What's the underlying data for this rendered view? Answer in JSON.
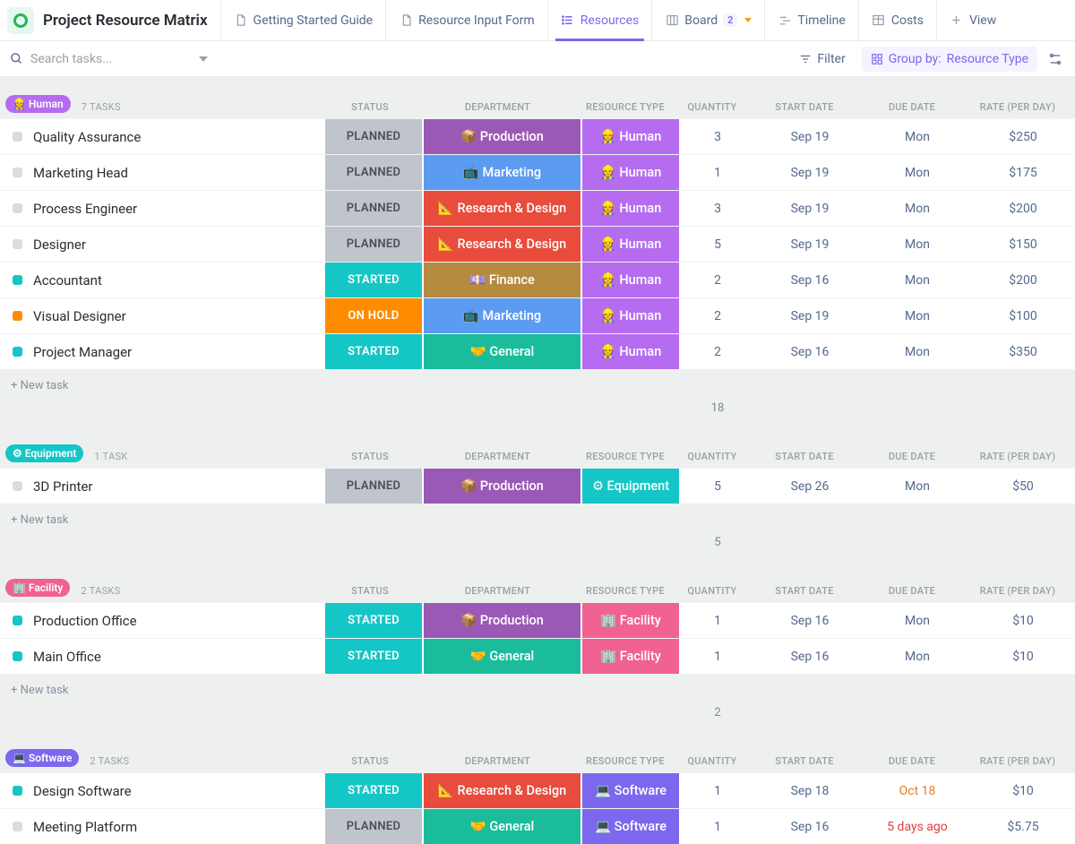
{
  "page_title": "Project Resource Matrix",
  "tabs": [
    {
      "label": "Getting Started Guide",
      "icon": "doc",
      "active": false
    },
    {
      "label": "Resource Input Form",
      "icon": "doc",
      "active": false
    },
    {
      "label": "Resources",
      "icon": "list",
      "active": true
    },
    {
      "label": "Board",
      "icon": "board",
      "active": false,
      "count": "2",
      "caret": true
    },
    {
      "label": "Timeline",
      "icon": "timeline",
      "active": false
    },
    {
      "label": "Costs",
      "icon": "table",
      "active": false
    },
    {
      "label": "View",
      "icon": "plus",
      "active": false
    }
  ],
  "search_placeholder": "Search tasks...",
  "filter_label": "Filter",
  "group_by_label": "Group by:",
  "group_by_value": "Resource Type",
  "new_task_label": "+ New task",
  "col_labels": {
    "status": "STATUS",
    "department": "DEPARTMENT",
    "resource_type": "RESOURCE TYPE",
    "quantity": "QUANTITY",
    "start": "START DATE",
    "due": "DUE DATE",
    "rate": "RATE (PER DAY)"
  },
  "status_colors": {
    "PLANNED": "#c0c4cc",
    "STARTED": "#15c6c6",
    "ON HOLD": "#ff8c00"
  },
  "marker_colors": {
    "grey": "#d9dce1",
    "teal": "#15c6c6",
    "orange": "#ff8c00"
  },
  "dept": {
    "Production": {
      "emoji": "📦",
      "color": "#9b59b6"
    },
    "Marketing": {
      "emoji": "📺",
      "color": "#5b9bf1"
    },
    "Research & Design": {
      "emoji": "📐",
      "color": "#e74c3c"
    },
    "Finance": {
      "emoji": "💷",
      "color": "#b58b3f"
    },
    "General": {
      "emoji": "🤝",
      "color": "#1abc9c"
    }
  },
  "type": {
    "Human": {
      "emoji": "👷",
      "color": "#b66cf0"
    },
    "Equipment": {
      "emoji": "⚙",
      "color": "#15c6c6"
    },
    "Facility": {
      "emoji": "🏢",
      "color": "#f06292"
    },
    "Software": {
      "emoji": "💻",
      "color": "#7b68ee"
    }
  },
  "groups": [
    {
      "name": "Human",
      "emoji": "👷",
      "color": "#b66cf0",
      "count_label": "7 TASKS",
      "sum_qty": "18",
      "rows": [
        {
          "name": "Quality Assurance",
          "marker": "grey",
          "status": "PLANNED",
          "dept": "Production",
          "type": "Human",
          "qty": "3",
          "start": "Sep 19",
          "due": "Mon",
          "rate": "$250"
        },
        {
          "name": "Marketing Head",
          "marker": "grey",
          "status": "PLANNED",
          "dept": "Marketing",
          "type": "Human",
          "qty": "1",
          "start": "Sep 19",
          "due": "Mon",
          "rate": "$175"
        },
        {
          "name": "Process Engineer",
          "marker": "grey",
          "status": "PLANNED",
          "dept": "Research & Design",
          "type": "Human",
          "qty": "3",
          "start": "Sep 19",
          "due": "Mon",
          "rate": "$200"
        },
        {
          "name": "Designer",
          "marker": "grey",
          "status": "PLANNED",
          "dept": "Research & Design",
          "type": "Human",
          "qty": "5",
          "start": "Sep 19",
          "due": "Mon",
          "rate": "$150"
        },
        {
          "name": "Accountant",
          "marker": "teal",
          "status": "STARTED",
          "dept": "Finance",
          "type": "Human",
          "qty": "2",
          "start": "Sep 16",
          "due": "Mon",
          "rate": "$200"
        },
        {
          "name": "Visual Designer",
          "marker": "orange",
          "status": "ON HOLD",
          "dept": "Marketing",
          "type": "Human",
          "qty": "2",
          "start": "Sep 19",
          "due": "Mon",
          "rate": "$100"
        },
        {
          "name": "Project Manager",
          "marker": "teal",
          "status": "STARTED",
          "dept": "General",
          "type": "Human",
          "qty": "2",
          "start": "Sep 16",
          "due": "Mon",
          "rate": "$350"
        }
      ]
    },
    {
      "name": "Equipment",
      "emoji": "⚙",
      "color": "#15c6c6",
      "count_label": "1 TASK",
      "sum_qty": "5",
      "rows": [
        {
          "name": "3D Printer",
          "marker": "grey",
          "status": "PLANNED",
          "dept": "Production",
          "type": "Equipment",
          "qty": "5",
          "start": "Sep 26",
          "due": "Mon",
          "rate": "$50"
        }
      ]
    },
    {
      "name": "Facility",
      "emoji": "🏢",
      "color": "#f06292",
      "count_label": "2 TASKS",
      "sum_qty": "2",
      "rows": [
        {
          "name": "Production Office",
          "marker": "teal",
          "status": "STARTED",
          "dept": "Production",
          "type": "Facility",
          "qty": "1",
          "start": "Sep 16",
          "due": "Mon",
          "rate": "$10"
        },
        {
          "name": "Main Office",
          "marker": "teal",
          "status": "STARTED",
          "dept": "General",
          "type": "Facility",
          "qty": "1",
          "start": "Sep 16",
          "due": "Mon",
          "rate": "$10"
        }
      ]
    },
    {
      "name": "Software",
      "emoji": "💻",
      "color": "#7b68ee",
      "count_label": "2 TASKS",
      "sum_qty": "",
      "rows": [
        {
          "name": "Design Software",
          "marker": "teal",
          "status": "STARTED",
          "dept": "Research & Design",
          "type": "Software",
          "qty": "1",
          "start": "Sep 18",
          "due": "Oct 18",
          "due_color": "#e67e22",
          "rate": "$10"
        },
        {
          "name": "Meeting Platform",
          "marker": "grey",
          "status": "PLANNED",
          "dept": "General",
          "type": "Software",
          "qty": "1",
          "start": "Sep 16",
          "due": "5 days ago",
          "due_color": "#e03e3e",
          "rate": "$5.75"
        }
      ]
    }
  ]
}
